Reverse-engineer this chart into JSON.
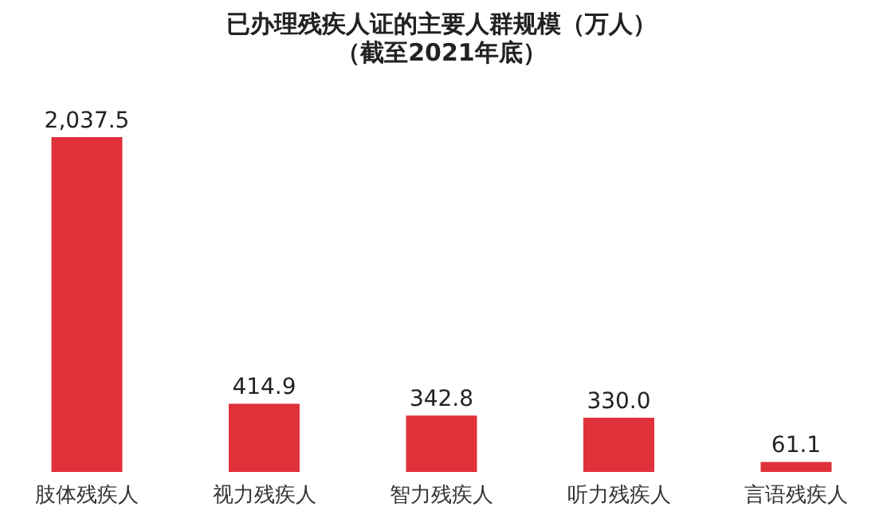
{
  "chart_data": {
    "type": "bar",
    "title": "已办理残疾人证的主要人群规模（万人）",
    "subtitle": "（截至2021年底）",
    "categories": [
      "肢体残疾人",
      "视力残疾人",
      "智力残疾人",
      "听力残疾人",
      "言语残疾人"
    ],
    "values": [
      2037.5,
      414.9,
      342.8,
      330.0,
      61.1
    ],
    "value_labels": [
      "2,037.5",
      "414.9",
      "342.8",
      "330.0",
      "61.1"
    ],
    "color": "#e0313b",
    "grid": false,
    "tick_labels": "x"
  }
}
